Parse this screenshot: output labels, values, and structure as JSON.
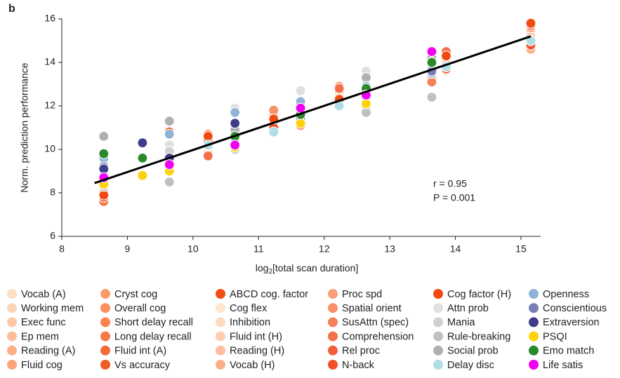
{
  "chart_data": {
    "type": "scatter",
    "panel_label": "b",
    "y_label": "Norm. prediction performance",
    "x_label": [
      "log",
      "2",
      "[total scan duration]"
    ],
    "xlim": [
      8,
      15.3
    ],
    "ylim": [
      6,
      16
    ],
    "xticks": [
      8,
      9,
      10,
      11,
      12,
      13,
      14,
      15
    ],
    "yticks": [
      6,
      8,
      10,
      12,
      14,
      16
    ],
    "annotations": [
      "r = 0.95",
      "P = 0.001"
    ],
    "fit_line": {
      "x": [
        8.5,
        15.15
      ],
      "y": [
        8.45,
        15.2
      ],
      "color": "#000000"
    },
    "series": [
      {
        "name": "Vocab (A)",
        "color": "#fde0c5",
        "x": [
          8.64,
          9.64,
          10.64,
          11.64,
          12.64,
          13.64
        ],
        "values": [
          9.0,
          9.9,
          10.8,
          11.9,
          12.8,
          13.6
        ]
      },
      {
        "name": "Working mem",
        "color": "#fdd5b5",
        "x": [
          8.64,
          10.23,
          11.23,
          12.23,
          13.86,
          15.15
        ],
        "values": [
          8.2,
          10.0,
          11.0,
          12.3,
          14.0,
          15.3
        ]
      },
      {
        "name": "Exec func",
        "color": "#fdc9a5",
        "x": [
          8.64,
          9.64,
          10.64,
          11.64,
          12.64,
          13.64
        ],
        "values": [
          8.8,
          9.5,
          10.4,
          11.4,
          12.5,
          13.8
        ]
      },
      {
        "name": "Ep mem",
        "color": "#fdbd96",
        "x": [
          8.64,
          10.23,
          11.23,
          12.23,
          13.86,
          15.15
        ],
        "values": [
          8.5,
          10.3,
          11.4,
          12.1,
          13.7,
          15.1
        ]
      },
      {
        "name": "Reading (A)",
        "color": "#fdb088",
        "x": [
          8.64,
          9.64,
          10.64,
          11.64,
          12.64,
          13.64
        ],
        "values": [
          9.2,
          9.8,
          10.7,
          11.8,
          12.9,
          13.9
        ]
      },
      {
        "name": "Fluid cog",
        "color": "#fca57a",
        "x": [
          8.64,
          10.23,
          11.23,
          12.23,
          13.86,
          15.15
        ],
        "values": [
          7.9,
          9.9,
          11.1,
          12.5,
          14.1,
          15.0
        ]
      },
      {
        "name": "Cryst cog",
        "color": "#fc9a6c",
        "x": [
          8.64,
          9.64,
          10.64,
          11.64,
          12.64,
          13.64
        ],
        "values": [
          8.4,
          9.3,
          10.5,
          11.5,
          12.6,
          13.5
        ]
      },
      {
        "name": "Overall cog",
        "color": "#fb8f5e",
        "x": [
          8.64,
          10.23,
          11.23,
          12.23,
          13.86,
          15.15
        ],
        "values": [
          8.0,
          10.4,
          11.5,
          12.6,
          14.2,
          15.4
        ]
      },
      {
        "name": "Short delay recall",
        "color": "#fa8451",
        "x": [
          8.64,
          9.64,
          10.64,
          11.64,
          12.64,
          13.64
        ],
        "values": [
          7.7,
          9.7,
          11.0,
          11.9,
          12.8,
          14.0
        ]
      },
      {
        "name": "Long delay recall",
        "color": "#f77944",
        "x": [
          8.64,
          10.23,
          11.23,
          12.23,
          13.86,
          15.15
        ],
        "values": [
          7.6,
          10.6,
          11.3,
          12.0,
          13.8,
          14.9
        ]
      },
      {
        "name": "Fluid int (A)",
        "color": "#f36b36",
        "x": [
          8.64,
          9.64,
          10.64,
          11.64,
          12.64,
          13.64
        ],
        "values": [
          8.3,
          10.0,
          10.6,
          11.3,
          12.4,
          13.6
        ]
      },
      {
        "name": "Vs accuracy",
        "color": "#f05a24",
        "x": [
          8.64,
          10.23,
          11.23,
          12.23,
          13.86,
          15.15
        ],
        "values": [
          7.9,
          9.8,
          10.9,
          12.7,
          14.3,
          15.5
        ]
      },
      {
        "name": "ABCD cog. factor",
        "color": "#f04e14",
        "x": [
          8.64,
          9.64,
          10.64,
          11.64,
          12.64,
          13.64
        ],
        "values": [
          7.9,
          10.8,
          10.2,
          11.7,
          12.8,
          13.7
        ]
      },
      {
        "name": "Cog flex",
        "color": "#fee6cc",
        "x": [
          8.64,
          10.23,
          11.23,
          12.23,
          13.86,
          15.15
        ],
        "values": [
          8.9,
          10.1,
          11.0,
          12.0,
          13.6,
          14.8
        ]
      },
      {
        "name": "Inhibition",
        "color": "#fedac0",
        "x": [
          8.64,
          9.64,
          10.64,
          11.64,
          12.64,
          13.64
        ],
        "values": [
          8.6,
          9.4,
          10.3,
          11.2,
          12.3,
          13.4
        ]
      },
      {
        "name": "Fluid int (H)",
        "color": "#fdcdb2",
        "x": [
          8.64,
          10.23,
          11.23,
          12.23,
          13.86,
          15.15
        ],
        "values": [
          8.3,
          10.5,
          11.2,
          12.4,
          14.0,
          15.2
        ]
      },
      {
        "name": "Reading (H)",
        "color": "#fcbea0",
        "x": [
          8.64,
          9.64,
          10.64,
          11.64,
          12.64,
          13.64
        ],
        "values": [
          8.7,
          9.5,
          10.9,
          11.6,
          12.7,
          13.7
        ]
      },
      {
        "name": "Vocab (H)",
        "color": "#fbb08c",
        "x": [
          8.64,
          10.23,
          11.23,
          12.23,
          13.86,
          15.15
        ],
        "values": [
          8.6,
          10.2,
          11.6,
          12.2,
          13.9,
          14.6
        ]
      },
      {
        "name": "Proc spd",
        "color": "#f9a07a",
        "x": [
          8.64,
          9.64,
          10.64,
          11.64,
          12.64,
          13.64
        ],
        "values": [
          8.1,
          9.2,
          10.4,
          11.5,
          12.2,
          13.3
        ]
      },
      {
        "name": "Spatial orient",
        "color": "#f89068",
        "x": [
          8.64,
          10.23,
          11.23,
          12.23,
          13.86,
          15.15
        ],
        "values": [
          8.4,
          10.7,
          11.8,
          12.9,
          14.4,
          15.6
        ]
      },
      {
        "name": "SusAttn (spec)",
        "color": "#f6805a",
        "x": [
          8.64,
          9.64,
          10.64,
          11.64,
          12.64,
          13.64
        ],
        "values": [
          8.9,
          9.9,
          10.1,
          11.1,
          12.0,
          13.1
        ]
      },
      {
        "name": "Comprehension",
        "color": "#f4704a",
        "x": [
          8.64,
          10.23,
          11.23,
          12.23,
          13.86,
          15.15
        ],
        "values": [
          8.2,
          9.7,
          11.3,
          12.8,
          14.5,
          15.7
        ]
      },
      {
        "name": "Rel proc",
        "color": "#f2603a",
        "x": [
          8.64,
          9.64,
          10.64,
          11.64,
          12.64,
          13.64
        ],
        "values": [
          8.0,
          9.6,
          10.7,
          11.8,
          12.6,
          13.8
        ]
      },
      {
        "name": "N-back",
        "color": "#f0502a",
        "x": [
          8.64,
          10.23,
          11.23,
          12.23,
          13.86,
          15.15
        ],
        "values": [
          7.8,
          10.4,
          11.0,
          12.1,
          13.7,
          14.8
        ]
      },
      {
        "name": "Cog factor (H)",
        "color": "#f04a10",
        "x": [
          8.64,
          10.23,
          11.23,
          12.23,
          13.86,
          15.15
        ],
        "values": [
          7.9,
          10.6,
          11.4,
          12.3,
          14.3,
          15.8
        ]
      },
      {
        "name": "Attn prob",
        "color": "#e0e0e0",
        "x": [
          8.64,
          9.64,
          10.64,
          11.64,
          12.64,
          13.64
        ],
        "values": [
          9.4,
          10.2,
          11.9,
          12.7,
          13.6,
          14.1
        ]
      },
      {
        "name": "Mania",
        "color": "#d0d0d0",
        "x": [
          8.64,
          9.64,
          10.64,
          11.64,
          12.64,
          13.64
        ],
        "values": [
          8.6,
          9.9,
          11.2,
          11.5,
          12.4,
          13.9
        ]
      },
      {
        "name": "Rule-breaking",
        "color": "#c0c0c0",
        "x": [
          8.64,
          9.64,
          10.64,
          11.64,
          12.64,
          13.64
        ],
        "values": [
          8.3,
          8.5,
          10.0,
          11.3,
          11.7,
          12.4
        ]
      },
      {
        "name": "Social prob",
        "color": "#b0b0b0",
        "x": [
          8.64,
          9.64,
          10.64,
          11.64,
          12.64,
          13.64
        ],
        "values": [
          10.6,
          11.3,
          10.9,
          12.2,
          13.3,
          14.2
        ]
      },
      {
        "name": "Delay disc",
        "color": "#b0dde6",
        "x": [
          8.64,
          10.23,
          11.23,
          12.23,
          13.86,
          15.15
        ],
        "values": [
          8.9,
          10.2,
          10.8,
          12.0,
          13.8,
          15.0
        ]
      },
      {
        "name": "Openness",
        "color": "#8fb3d6",
        "x": [
          8.64,
          9.64,
          10.64,
          11.64,
          12.64,
          13.64
        ],
        "values": [
          9.6,
          10.7,
          11.7,
          12.2,
          12.9,
          13.5
        ]
      },
      {
        "name": "Conscientious",
        "color": "#7a7cb6",
        "x": [
          8.64,
          9.64,
          10.64,
          11.64,
          12.64,
          13.64
        ],
        "values": [
          9.2,
          9.5,
          10.5,
          11.4,
          12.4,
          13.6
        ]
      },
      {
        "name": "Extraversion",
        "color": "#3f3c8c",
        "x": [
          8.64,
          9.23,
          9.64,
          10.64,
          12.64,
          13.64
        ],
        "values": [
          9.1,
          10.3,
          9.6,
          11.2,
          12.7,
          14.0
        ]
      },
      {
        "name": "PSQI",
        "color": "#fdd20a",
        "x": [
          8.64,
          9.23,
          9.64,
          10.64,
          11.64,
          12.64
        ],
        "values": [
          8.4,
          8.8,
          9.0,
          10.1,
          11.2,
          12.1
        ]
      },
      {
        "name": "Emo match",
        "color": "#2a8a2a",
        "x": [
          8.64,
          9.23,
          10.64,
          11.64,
          12.64,
          13.64
        ],
        "values": [
          9.8,
          9.6,
          10.6,
          11.6,
          12.8,
          14.0
        ]
      },
      {
        "name": "Life satis",
        "color": "#f000f0",
        "x": [
          8.64,
          9.64,
          10.64,
          11.64,
          12.64,
          13.64
        ],
        "values": [
          8.7,
          9.3,
          10.2,
          11.9,
          12.5,
          14.5
        ]
      }
    ]
  }
}
